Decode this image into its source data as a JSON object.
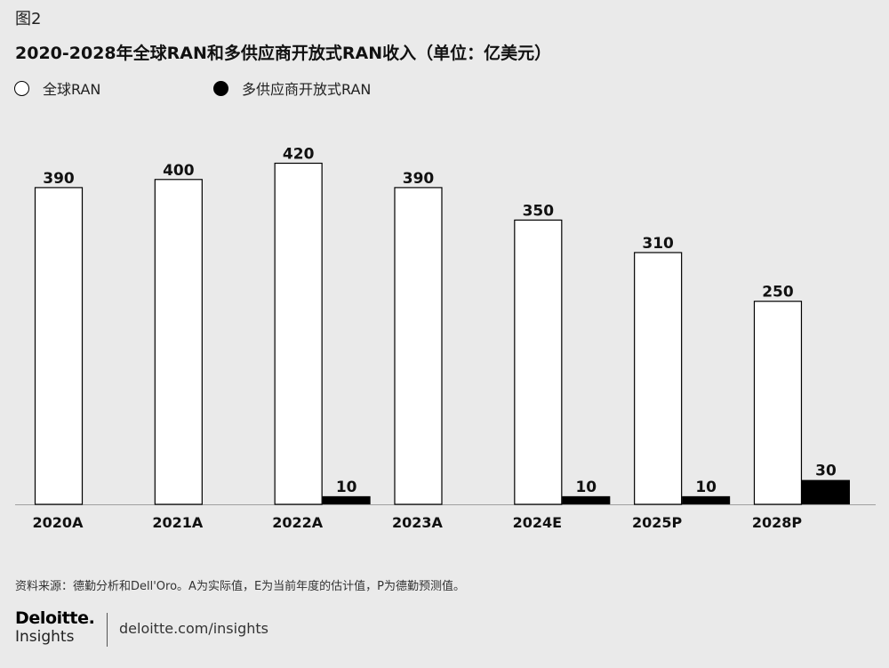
{
  "figure_label": "图2",
  "chart_data": {
    "type": "bar",
    "title": "2020-2028年全球RAN和多供应商开放式RAN收入（单位：亿美元）",
    "categories": [
      "2020A",
      "2021A",
      "2022A",
      "2023A",
      "2024E",
      "2025P",
      "2028P"
    ],
    "series": [
      {
        "name": "全球RAN",
        "values": [
          390,
          400,
          420,
          390,
          350,
          310,
          250
        ],
        "color": "#ffffff",
        "stroke": "#000000"
      },
      {
        "name": "多供应商开放式RAN",
        "values": [
          null,
          null,
          10,
          null,
          10,
          10,
          30
        ],
        "color": "#000000"
      }
    ],
    "xlabel": "",
    "ylabel": "",
    "ylim": [
      0,
      460
    ],
    "grid": false,
    "legend": "top-left"
  },
  "source_note": "资料来源：德勤分析和Dell'Oro。A为实际值，E为当前年度的估计值，P为德勤预测值。",
  "brand": {
    "logo_name": "Deloitte.",
    "logo_sub": "Insights",
    "url": "deloitte.com/insights"
  },
  "colors": {
    "background": "#eaeaea",
    "text": "#111111",
    "axis": "#a0a0a0"
  }
}
